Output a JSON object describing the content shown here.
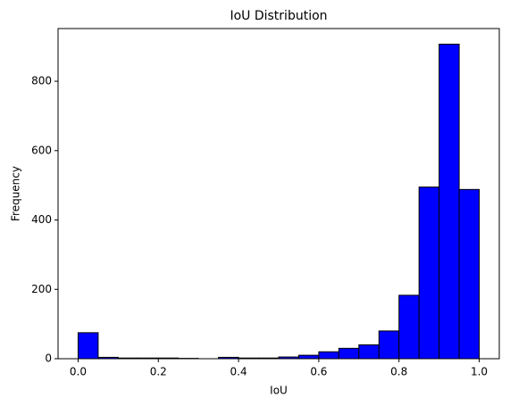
{
  "chart_data": {
    "type": "histogram",
    "title": "IoU Distribution",
    "x_label": "IoU",
    "y_label": "Frequency",
    "bins": [
      0,
      0.05,
      0.1,
      0.15,
      0.2,
      0.25,
      0.3,
      0.35,
      0.4,
      0.45,
      0.5,
      0.55,
      0.6,
      0.65,
      0.7,
      0.75,
      0.8,
      0.85,
      0.9,
      0.95,
      1
    ],
    "counts": [
      75,
      4,
      2,
      2,
      2,
      1,
      0,
      4,
      2,
      2,
      5,
      10,
      20,
      30,
      40,
      80,
      183,
      495,
      907,
      488
    ],
    "color": "#0000ff",
    "edgecolor": "#000000",
    "xlim": [
      -0.05,
      1.05
    ],
    "ylim": [
      0,
      952
    ],
    "xticks": [
      {
        "value": 0,
        "label": "0.0"
      },
      {
        "value": 0.2,
        "label": "0.2"
      },
      {
        "value": 0.4,
        "label": "0.4"
      },
      {
        "value": 0.6,
        "label": "0.6"
      },
      {
        "value": 0.8,
        "label": "0.8"
      },
      {
        "value": 1,
        "label": "1.0"
      }
    ],
    "yticks": [
      0,
      200,
      400,
      600,
      800
    ],
    "grid": false
  }
}
